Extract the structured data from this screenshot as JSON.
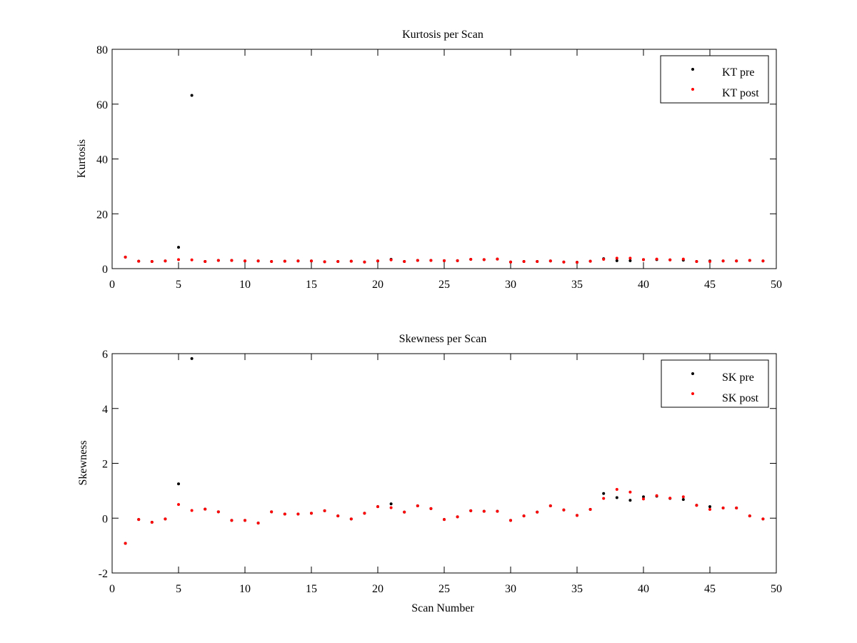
{
  "chart_data": [
    {
      "type": "scatter",
      "title": "Kurtosis per Scan",
      "xlabel": "",
      "ylabel": "Kurtosis",
      "xlim": [
        0,
        50
      ],
      "ylim": [
        0,
        80
      ],
      "xticks": [
        "0",
        "5",
        "10",
        "15",
        "20",
        "25",
        "30",
        "35",
        "40",
        "45",
        "50"
      ],
      "yticks": [
        "0",
        "20",
        "40",
        "60",
        "80"
      ],
      "grid": false,
      "legend_position": "top-right",
      "series": [
        {
          "name": "KT pre",
          "color": "#000000",
          "x": [
            1,
            2,
            3,
            4,
            5,
            6,
            7,
            8,
            9,
            10,
            11,
            12,
            13,
            14,
            15,
            16,
            17,
            18,
            19,
            20,
            21,
            22,
            23,
            24,
            25,
            26,
            27,
            28,
            29,
            30,
            31,
            32,
            33,
            34,
            35,
            36,
            37,
            38,
            39,
            40,
            41,
            42,
            43,
            44,
            45,
            46,
            47,
            48,
            49
          ],
          "y": [
            4.2,
            2.7,
            2.6,
            2.8,
            7.8,
            63.2,
            2.6,
            3.0,
            3.0,
            2.8,
            2.8,
            2.6,
            2.7,
            2.8,
            2.8,
            2.5,
            2.6,
            2.7,
            2.4,
            2.8,
            3.4,
            2.6,
            3.0,
            3.0,
            2.9,
            2.9,
            3.4,
            3.3,
            3.5,
            2.4,
            2.6,
            2.6,
            2.8,
            2.4,
            2.3,
            2.7,
            3.6,
            2.9,
            2.9,
            3.3,
            3.3,
            3.2,
            3.1,
            2.6,
            2.8,
            2.8,
            2.8,
            3.0,
            2.8
          ]
        },
        {
          "name": "KT post",
          "color": "#ff0000",
          "x": [
            1,
            2,
            3,
            4,
            5,
            6,
            7,
            8,
            9,
            10,
            11,
            12,
            13,
            14,
            15,
            16,
            17,
            18,
            19,
            20,
            21,
            22,
            23,
            24,
            25,
            26,
            27,
            28,
            29,
            30,
            31,
            32,
            33,
            34,
            35,
            36,
            37,
            38,
            39,
            40,
            41,
            42,
            43,
            44,
            45,
            46,
            47,
            48,
            49
          ],
          "y": [
            4.2,
            2.7,
            2.6,
            2.8,
            3.3,
            3.2,
            2.6,
            3.0,
            3.0,
            2.8,
            2.8,
            2.6,
            2.7,
            2.8,
            2.8,
            2.5,
            2.6,
            2.7,
            2.4,
            2.8,
            3.2,
            2.6,
            3.0,
            3.0,
            2.9,
            2.9,
            3.4,
            3.3,
            3.5,
            2.4,
            2.6,
            2.6,
            2.8,
            2.4,
            2.3,
            2.7,
            3.4,
            3.8,
            3.8,
            3.3,
            3.5,
            3.2,
            3.5,
            2.6,
            2.6,
            2.8,
            2.8,
            3.0,
            2.8
          ]
        }
      ]
    },
    {
      "type": "scatter",
      "title": "Skewness per Scan",
      "xlabel": "Scan Number",
      "ylabel": "Skewness",
      "xlim": [
        0,
        50
      ],
      "ylim": [
        -2,
        6
      ],
      "xticks": [
        "0",
        "5",
        "10",
        "15",
        "20",
        "25",
        "30",
        "35",
        "40",
        "45",
        "50"
      ],
      "yticks": [
        "-2",
        "0",
        "2",
        "4",
        "6"
      ],
      "grid": false,
      "legend_position": "top-right",
      "series": [
        {
          "name": "SK pre",
          "color": "#000000",
          "x": [
            1,
            2,
            3,
            4,
            5,
            6,
            7,
            8,
            9,
            10,
            11,
            12,
            13,
            14,
            15,
            16,
            17,
            18,
            19,
            20,
            21,
            22,
            23,
            24,
            25,
            26,
            27,
            28,
            29,
            30,
            31,
            32,
            33,
            34,
            35,
            36,
            37,
            38,
            39,
            40,
            41,
            42,
            43,
            44,
            45,
            46,
            47,
            48,
            49
          ],
          "y": [
            -0.92,
            -0.05,
            -0.15,
            -0.03,
            1.25,
            5.82,
            0.33,
            0.23,
            -0.08,
            -0.08,
            -0.18,
            0.23,
            0.15,
            0.15,
            0.18,
            0.27,
            0.08,
            -0.03,
            0.18,
            0.42,
            0.52,
            0.22,
            0.45,
            0.35,
            -0.05,
            0.05,
            0.27,
            0.25,
            0.25,
            -0.08,
            0.08,
            0.22,
            0.45,
            0.3,
            0.1,
            0.32,
            0.9,
            0.75,
            0.65,
            0.78,
            0.8,
            0.72,
            0.68,
            0.47,
            0.42,
            0.37,
            0.37,
            0.08,
            -0.03
          ]
        },
        {
          "name": "SK post",
          "color": "#ff0000",
          "x": [
            1,
            2,
            3,
            4,
            5,
            6,
            7,
            8,
            9,
            10,
            11,
            12,
            13,
            14,
            15,
            16,
            17,
            18,
            19,
            20,
            21,
            22,
            23,
            24,
            25,
            26,
            27,
            28,
            29,
            30,
            31,
            32,
            33,
            34,
            35,
            36,
            37,
            38,
            39,
            40,
            41,
            42,
            43,
            44,
            45,
            46,
            47,
            48,
            49
          ],
          "y": [
            -0.92,
            -0.05,
            -0.15,
            -0.03,
            0.5,
            0.28,
            0.33,
            0.23,
            -0.08,
            -0.08,
            -0.18,
            0.23,
            0.15,
            0.15,
            0.18,
            0.27,
            0.08,
            -0.03,
            0.18,
            0.42,
            0.38,
            0.22,
            0.45,
            0.35,
            -0.05,
            0.05,
            0.27,
            0.25,
            0.25,
            -0.08,
            0.08,
            0.22,
            0.45,
            0.3,
            0.1,
            0.32,
            0.72,
            1.05,
            0.95,
            0.7,
            0.82,
            0.73,
            0.78,
            0.47,
            0.32,
            0.37,
            0.37,
            0.08,
            -0.03
          ]
        }
      ]
    }
  ]
}
